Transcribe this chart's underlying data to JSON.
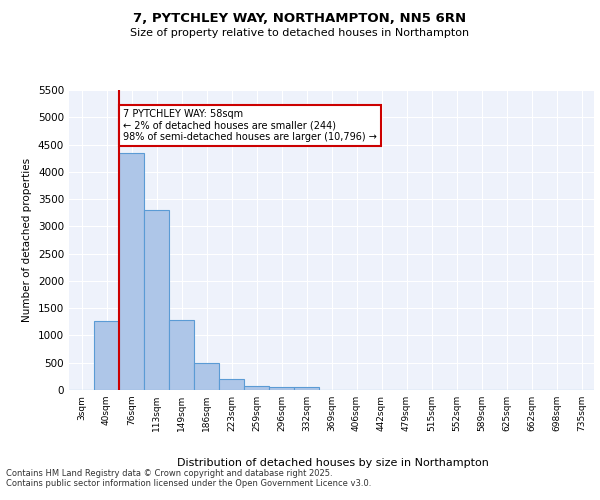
{
  "title1": "7, PYTCHLEY WAY, NORTHAMPTON, NN5 6RN",
  "title2": "Size of property relative to detached houses in Northampton",
  "xlabel": "Distribution of detached houses by size in Northampton",
  "ylabel": "Number of detached properties",
  "bin_labels": [
    "3sqm",
    "40sqm",
    "76sqm",
    "113sqm",
    "149sqm",
    "186sqm",
    "223sqm",
    "259sqm",
    "296sqm",
    "332sqm",
    "369sqm",
    "406sqm",
    "442sqm",
    "479sqm",
    "515sqm",
    "552sqm",
    "589sqm",
    "625sqm",
    "662sqm",
    "698sqm",
    "735sqm"
  ],
  "bar_values": [
    0,
    1270,
    4350,
    3300,
    1280,
    500,
    210,
    80,
    55,
    50,
    0,
    0,
    0,
    0,
    0,
    0,
    0,
    0,
    0,
    0,
    0
  ],
  "bar_color": "#aec6e8",
  "bar_edge_color": "#5b9bd5",
  "property_line_label": "7 PYTCHLEY WAY: 58sqm",
  "annotation_line1": "← 2% of detached houses are smaller (244)",
  "annotation_line2": "98% of semi-detached houses are larger (10,796) →",
  "annotation_box_color": "#ffffff",
  "annotation_box_edge": "#cc0000",
  "vline_color": "#cc0000",
  "background_color": "#eef2fb",
  "grid_color": "#ffffff",
  "footer1": "Contains HM Land Registry data © Crown copyright and database right 2025.",
  "footer2": "Contains public sector information licensed under the Open Government Licence v3.0.",
  "ylim": [
    0,
    5500
  ],
  "yticks": [
    0,
    500,
    1000,
    1500,
    2000,
    2500,
    3000,
    3500,
    4000,
    4500,
    5000,
    5500
  ]
}
